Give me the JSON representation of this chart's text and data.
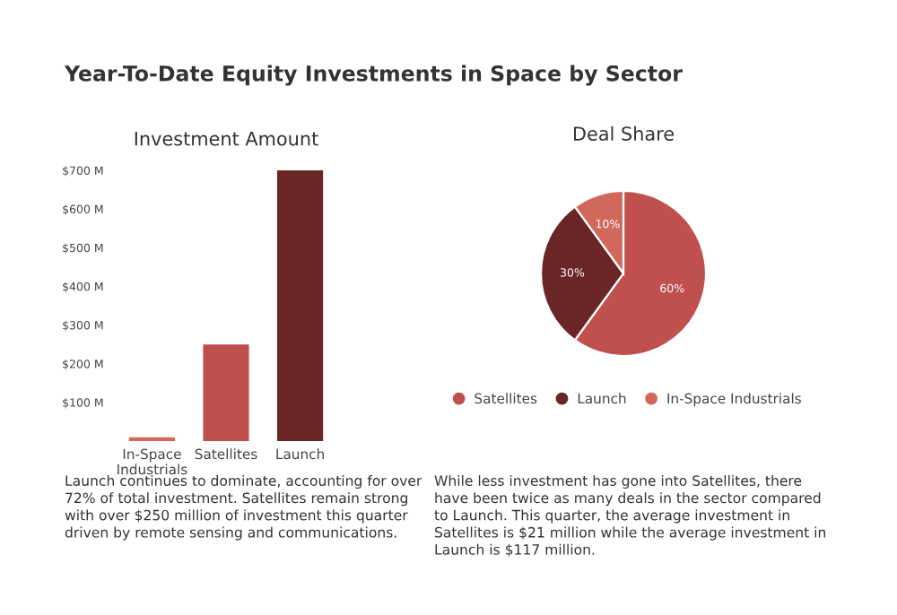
{
  "chart_data": [
    {
      "type": "bar",
      "title": "Investment Amount",
      "categories": [
        "In-Space\nIndustrials",
        "Satellites",
        "Launch"
      ],
      "values": [
        10,
        250,
        700
      ],
      "colors": [
        "#d2685c",
        "#c0504d",
        "#6a2626"
      ],
      "ylim": [
        0,
        700
      ],
      "yticks": [
        {
          "value": 100,
          "label": "$100 M"
        },
        {
          "value": 200,
          "label": "$200 M"
        },
        {
          "value": 300,
          "label": "$300 M"
        },
        {
          "value": 400,
          "label": "$400 M"
        },
        {
          "value": 500,
          "label": "$500 M"
        },
        {
          "value": 600,
          "label": "$600 M"
        },
        {
          "value": 700,
          "label": "$700 M"
        }
      ],
      "grid": false,
      "annotations": [
        "Year-To-Date Equity Investments in Space by Sector",
        "Launch continues to dominate, accounting for over 72% of total investment. Satellites remain strong with over $250 million of investment this quarter driven by remote sensing and communications."
      ]
    },
    {
      "type": "pie",
      "title": "Deal Share",
      "categories": [
        "Satellites",
        "Launch",
        "In-Space Industrials"
      ],
      "values": [
        60,
        30,
        10
      ],
      "colors": [
        "#c0504d",
        "#6a2626",
        "#d2685c"
      ],
      "value_labels": [
        "60%",
        "30%",
        "10%"
      ],
      "legend": "bottom",
      "annotations": [
        "While less investment has gone into Satellites, there have been twice as many deals in the sector compared to Launch. This quarter, the average investment in Satellites is $21 million while the average investment in Launch is $117 million."
      ]
    }
  ]
}
